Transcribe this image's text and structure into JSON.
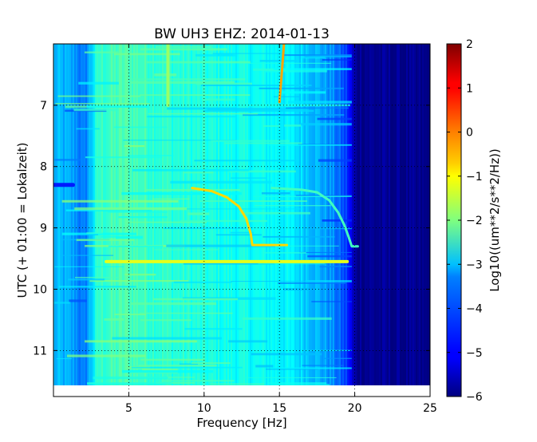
{
  "chart_data": {
    "type": "heatmap",
    "title": "BW UH3 EHZ: 2014-01-13",
    "xlabel": "Frequency [Hz]",
    "ylabel": "UTC (+ 01:00 = Lokalzeit)",
    "xlim": [
      0,
      25
    ],
    "ylim": [
      11.75,
      6.0
    ],
    "x_ticks": [
      "5",
      "10",
      "15",
      "20",
      "25"
    ],
    "y_ticks": [
      "7",
      "8",
      "9",
      "10",
      "11"
    ],
    "grid": true,
    "colormap": "jet",
    "colorbar": {
      "label": "Log10((um**2/s**2/Hz))",
      "range": [
        -6,
        2
      ],
      "ticks": [
        "2",
        "1",
        "0",
        "−1",
        "−2",
        "−3",
        "−4",
        "−5",
        "−6"
      ]
    },
    "background_level_by_frequency": [
      {
        "x": 0.5,
        "value": -3.6
      },
      {
        "x": 1.5,
        "value": -3.8
      },
      {
        "x": 2.0,
        "value": -4.2
      },
      {
        "x": 3.0,
        "value": -2.6
      },
      {
        "x": 5.0,
        "value": -2.4
      },
      {
        "x": 8.0,
        "value": -2.7
      },
      {
        "x": 12.0,
        "value": -2.9
      },
      {
        "x": 15.0,
        "value": -3.0
      },
      {
        "x": 17.0,
        "value": -3.4
      },
      {
        "x": 18.5,
        "value": -3.9
      },
      {
        "x": 19.5,
        "value": -4.6
      },
      {
        "x": 20.0,
        "value": -5.8
      },
      {
        "x": 25.0,
        "value": -6.0
      }
    ],
    "features": [
      {
        "name": "",
        "type": "curve",
        "value": -0.3,
        "points": [
          [
            15.3,
            6.0
          ],
          [
            15.15,
            6.5
          ],
          [
            15.0,
            6.95
          ]
        ]
      },
      {
        "name": "",
        "type": "curve",
        "value": -0.7,
        "points": [
          [
            9.2,
            8.35
          ],
          [
            10.5,
            8.4
          ],
          [
            11.5,
            8.5
          ],
          [
            12.3,
            8.65
          ],
          [
            12.8,
            8.85
          ],
          [
            13.1,
            9.1
          ],
          [
            13.2,
            9.28
          ],
          [
            14.0,
            9.28
          ],
          [
            15.5,
            9.28
          ]
        ]
      },
      {
        "name": "",
        "type": "curve",
        "value": -2.5,
        "points": [
          [
            14.5,
            8.35
          ],
          [
            16.5,
            8.38
          ],
          [
            17.5,
            8.42
          ],
          [
            18.3,
            8.55
          ],
          [
            18.9,
            8.75
          ],
          [
            19.3,
            8.95
          ],
          [
            19.6,
            9.15
          ],
          [
            19.8,
            9.3
          ],
          [
            20.2,
            9.3
          ]
        ]
      },
      {
        "name": "",
        "type": "band",
        "value": -1.2,
        "points": [
          [
            3.5,
            9.55
          ],
          [
            19.5,
            9.55
          ]
        ]
      },
      {
        "name": "",
        "type": "line",
        "value": -4.8,
        "points": [
          [
            0,
            8.3
          ],
          [
            1.3,
            8.3
          ]
        ]
      },
      {
        "name": "",
        "type": "band",
        "value": -1.8,
        "points": [
          [
            7.6,
            6.0
          ],
          [
            7.6,
            7.0
          ]
        ]
      }
    ]
  }
}
